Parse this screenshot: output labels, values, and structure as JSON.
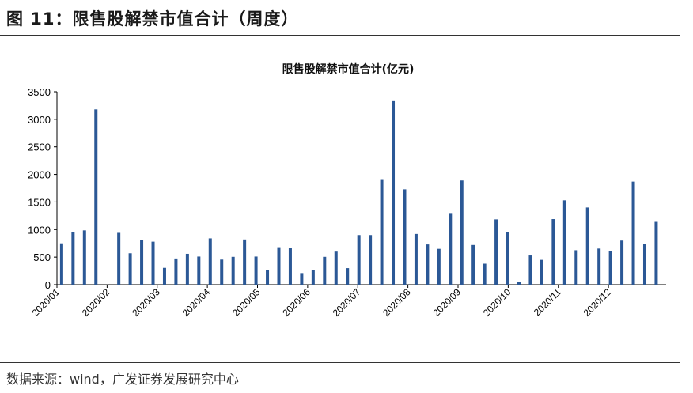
{
  "header": {
    "title": "图 11：限售股解禁市值合计（周度）"
  },
  "footer": {
    "source": "数据来源：wind，广发证券发展研究中心"
  },
  "colors": {
    "bar": "#2B5896"
  },
  "chart_data": {
    "type": "bar",
    "title": "限售股解禁市值合计(亿元)",
    "xlabel": "",
    "ylabel": "",
    "ylim": [
      0,
      3500
    ],
    "yticks": [
      0,
      500,
      1000,
      1500,
      2000,
      2500,
      3000,
      3500
    ],
    "month_labels": [
      "2020/01",
      "2020/02",
      "2020/03",
      "2020/04",
      "2020/05",
      "2020/06",
      "2020/07",
      "2020/08",
      "2020/09",
      "2020/10",
      "2020/11",
      "2020/12"
    ],
    "values": [
      750,
      960,
      985,
      3180,
      0,
      940,
      570,
      810,
      780,
      305,
      475,
      560,
      510,
      840,
      455,
      505,
      820,
      510,
      265,
      680,
      665,
      210,
      265,
      505,
      600,
      300,
      900,
      900,
      1900,
      3330,
      1730,
      920,
      730,
      650,
      1300,
      1890,
      720,
      380,
      1185,
      960,
      50,
      530,
      450,
      1190,
      1530,
      625,
      1400,
      655,
      615,
      800,
      1870,
      745,
      1140
    ]
  }
}
